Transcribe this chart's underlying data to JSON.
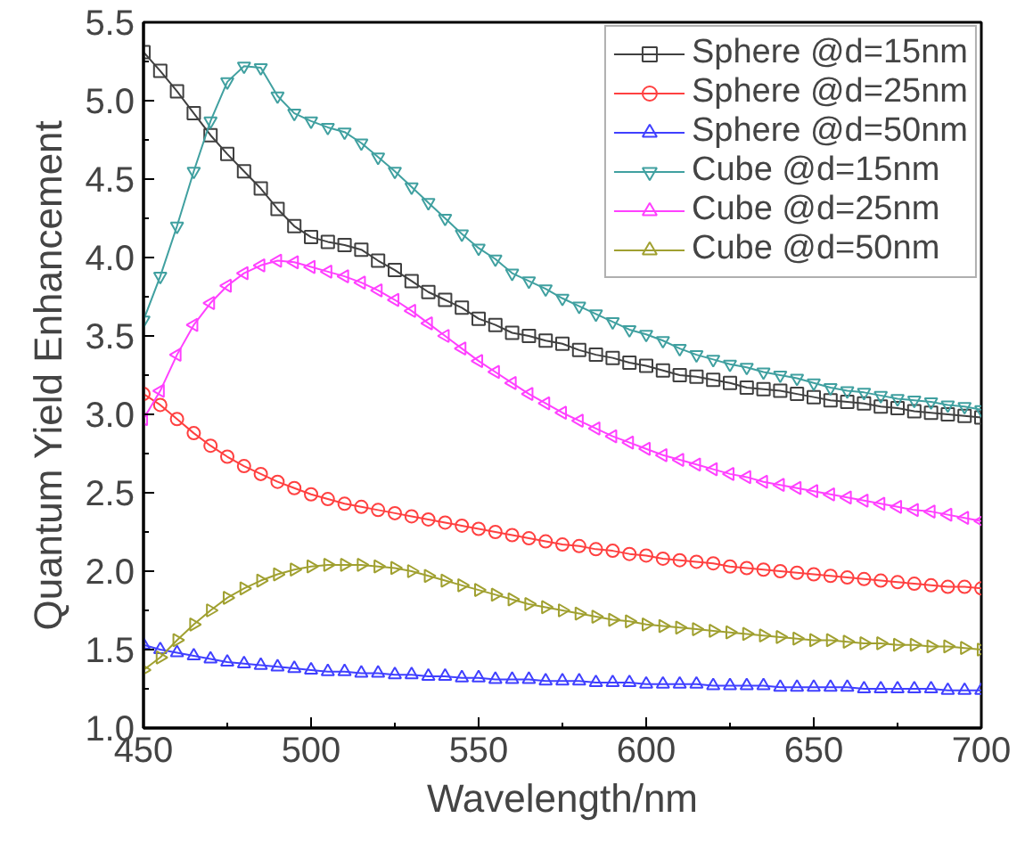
{
  "chart_data": {
    "type": "line",
    "xlabel": "Wavelength/nm",
    "ylabel": "Quantum Yield Enhancement",
    "x": [
      450,
      455,
      460,
      465,
      470,
      475,
      480,
      485,
      490,
      495,
      500,
      505,
      510,
      515,
      520,
      525,
      530,
      535,
      540,
      545,
      550,
      555,
      560,
      565,
      570,
      575,
      580,
      585,
      590,
      595,
      600,
      605,
      610,
      615,
      620,
      625,
      630,
      635,
      640,
      645,
      650,
      655,
      660,
      665,
      670,
      675,
      680,
      685,
      690,
      695,
      700
    ],
    "xlim": [
      450,
      700
    ],
    "xticks": [
      450,
      500,
      550,
      600,
      650,
      700
    ],
    "ylim": [
      1.0,
      5.5
    ],
    "yticks": [
      {
        "value": 1.0,
        "label": "1.0"
      },
      {
        "value": 1.5,
        "label": "1.5"
      },
      {
        "value": 2.0,
        "label": "2.0"
      },
      {
        "value": 2.5,
        "label": "2.5"
      },
      {
        "value": 3.0,
        "label": "3.0"
      },
      {
        "value": 3.5,
        "label": "3.5"
      },
      {
        "value": 4.0,
        "label": "4.0"
      },
      {
        "value": 4.5,
        "label": "4.5"
      },
      {
        "value": 5.0,
        "label": "5.0"
      },
      {
        "value": 5.5,
        "label": "5.5"
      }
    ],
    "grid": false,
    "legend": "top right",
    "line_style": "solid",
    "series": [
      {
        "name": "Sphere @d=15nm",
        "color": "#404040",
        "marker": "square",
        "values": [
          5.31,
          5.19,
          5.06,
          4.92,
          4.78,
          4.66,
          4.55,
          4.44,
          4.31,
          4.2,
          4.13,
          4.1,
          4.08,
          4.05,
          3.98,
          3.92,
          3.85,
          3.78,
          3.73,
          3.68,
          3.61,
          3.57,
          3.52,
          3.5,
          3.47,
          3.45,
          3.41,
          3.38,
          3.36,
          3.33,
          3.31,
          3.28,
          3.25,
          3.24,
          3.22,
          3.2,
          3.17,
          3.16,
          3.15,
          3.13,
          3.11,
          3.09,
          3.08,
          3.07,
          3.05,
          3.04,
          3.02,
          3.01,
          3.0,
          2.99,
          2.98
        ]
      },
      {
        "name": "Sphere @d=25nm",
        "color": "#ff4040",
        "marker": "circle",
        "values": [
          3.13,
          3.06,
          2.97,
          2.88,
          2.8,
          2.73,
          2.67,
          2.62,
          2.57,
          2.53,
          2.49,
          2.46,
          2.43,
          2.41,
          2.39,
          2.37,
          2.35,
          2.33,
          2.31,
          2.29,
          2.27,
          2.25,
          2.23,
          2.21,
          2.19,
          2.17,
          2.16,
          2.14,
          2.13,
          2.11,
          2.1,
          2.08,
          2.07,
          2.06,
          2.05,
          2.03,
          2.02,
          2.01,
          2.0,
          1.99,
          1.98,
          1.97,
          1.96,
          1.95,
          1.94,
          1.93,
          1.92,
          1.91,
          1.9,
          1.9,
          1.89
        ]
      },
      {
        "name": "Sphere @d=50nm",
        "color": "#4040ff",
        "marker": "triangle",
        "values": [
          1.53,
          1.5,
          1.48,
          1.46,
          1.44,
          1.42,
          1.41,
          1.4,
          1.39,
          1.38,
          1.37,
          1.36,
          1.36,
          1.35,
          1.35,
          1.34,
          1.34,
          1.33,
          1.33,
          1.32,
          1.32,
          1.31,
          1.31,
          1.31,
          1.3,
          1.3,
          1.3,
          1.29,
          1.29,
          1.29,
          1.28,
          1.28,
          1.28,
          1.28,
          1.27,
          1.27,
          1.27,
          1.27,
          1.26,
          1.26,
          1.26,
          1.26,
          1.26,
          1.25,
          1.25,
          1.25,
          1.25,
          1.25,
          1.24,
          1.24,
          1.24
        ]
      },
      {
        "name": "Cube @d=15nm",
        "color": "#40a0a0",
        "marker": "triangle_down",
        "values": [
          3.6,
          3.88,
          4.2,
          4.55,
          4.87,
          5.12,
          5.22,
          5.21,
          5.03,
          4.92,
          4.87,
          4.83,
          4.8,
          4.73,
          4.64,
          4.55,
          4.45,
          4.35,
          4.25,
          4.15,
          4.06,
          3.99,
          3.9,
          3.85,
          3.8,
          3.74,
          3.69,
          3.64,
          3.59,
          3.54,
          3.51,
          3.47,
          3.42,
          3.38,
          3.35,
          3.32,
          3.3,
          3.27,
          3.25,
          3.23,
          3.2,
          3.17,
          3.15,
          3.14,
          3.12,
          3.1,
          3.09,
          3.08,
          3.06,
          3.05,
          3.03
        ]
      },
      {
        "name": "Cube @d=25nm",
        "color": "#ff40ff",
        "marker": "triangle_left",
        "values": [
          2.97,
          3.15,
          3.38,
          3.57,
          3.71,
          3.82,
          3.9,
          3.95,
          3.98,
          3.97,
          3.94,
          3.91,
          3.88,
          3.84,
          3.79,
          3.73,
          3.66,
          3.58,
          3.5,
          3.42,
          3.34,
          3.27,
          3.2,
          3.13,
          3.07,
          3.01,
          2.96,
          2.91,
          2.86,
          2.82,
          2.78,
          2.74,
          2.71,
          2.68,
          2.65,
          2.62,
          2.6,
          2.57,
          2.55,
          2.53,
          2.51,
          2.49,
          2.47,
          2.45,
          2.43,
          2.41,
          2.39,
          2.38,
          2.36,
          2.34,
          2.32
        ]
      },
      {
        "name": "Cube @d=50nm",
        "color": "#a0a030",
        "marker": "triangle_right",
        "values": [
          1.37,
          1.45,
          1.56,
          1.66,
          1.75,
          1.83,
          1.89,
          1.94,
          1.98,
          2.01,
          2.03,
          2.04,
          2.04,
          2.04,
          2.03,
          2.02,
          2.0,
          1.97,
          1.94,
          1.91,
          1.88,
          1.85,
          1.82,
          1.79,
          1.77,
          1.75,
          1.73,
          1.71,
          1.69,
          1.68,
          1.66,
          1.65,
          1.64,
          1.63,
          1.62,
          1.61,
          1.6,
          1.59,
          1.58,
          1.57,
          1.56,
          1.56,
          1.55,
          1.54,
          1.54,
          1.53,
          1.53,
          1.52,
          1.52,
          1.51,
          1.5
        ]
      }
    ]
  }
}
